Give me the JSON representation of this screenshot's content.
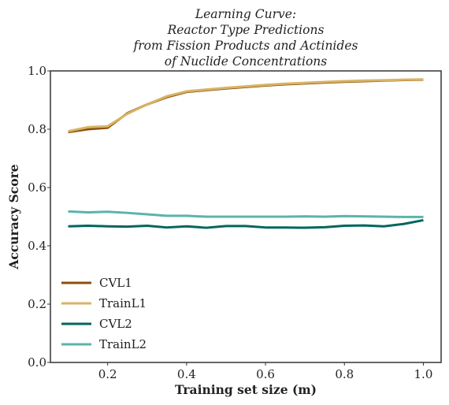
{
  "chart_data": {
    "type": "line",
    "title_lines": [
      "Learning Curve:",
      "Reactor Type Predictions",
      "from Fission Products and Actinides",
      "of Nuclide Concentrations"
    ],
    "xlabel": "Training set size (m)",
    "ylabel": "Accuracy Score",
    "xlim": [
      0.055,
      1.045
    ],
    "ylim": [
      0.0,
      1.0
    ],
    "xticks": [
      0.2,
      0.4,
      0.6,
      0.8,
      1.0
    ],
    "xtick_labels": [
      "0.2",
      "0.4",
      "0.6",
      "0.8",
      "1.0"
    ],
    "yticks": [
      0.0,
      0.2,
      0.4,
      0.6,
      0.8,
      1.0
    ],
    "ytick_labels": [
      "0.0",
      "0.2",
      "0.4",
      "0.6",
      "0.8",
      "1.0"
    ],
    "grid": false,
    "legend_placement": "lower-left",
    "x": [
      0.1,
      0.15,
      0.2,
      0.25,
      0.3,
      0.35,
      0.4,
      0.45,
      0.5,
      0.55,
      0.6,
      0.65,
      0.7,
      0.75,
      0.8,
      0.85,
      0.9,
      0.95,
      1.0
    ],
    "series": [
      {
        "name": "CVL1",
        "color": "#8c510a",
        "values": [
          0.79,
          0.8,
          0.805,
          0.855,
          0.885,
          0.91,
          0.928,
          0.934,
          0.94,
          0.945,
          0.95,
          0.954,
          0.957,
          0.96,
          0.963,
          0.965,
          0.967,
          0.969,
          0.97
        ]
      },
      {
        "name": "TrainL1",
        "color": "#d8b365",
        "values": [
          0.793,
          0.807,
          0.81,
          0.853,
          0.885,
          0.913,
          0.93,
          0.936,
          0.942,
          0.947,
          0.952,
          0.956,
          0.959,
          0.962,
          0.965,
          0.967,
          0.968,
          0.97,
          0.971
        ]
      },
      {
        "name": "CVL2",
        "color": "#01665e",
        "values": [
          0.467,
          0.469,
          0.467,
          0.466,
          0.469,
          0.463,
          0.467,
          0.462,
          0.468,
          0.468,
          0.463,
          0.463,
          0.462,
          0.464,
          0.469,
          0.47,
          0.467,
          0.475,
          0.488
        ]
      },
      {
        "name": "TrainL2",
        "color": "#5ab4ac",
        "values": [
          0.518,
          0.515,
          0.517,
          0.513,
          0.508,
          0.503,
          0.503,
          0.5,
          0.5,
          0.5,
          0.5,
          0.5,
          0.501,
          0.5,
          0.502,
          0.501,
          0.5,
          0.499,
          0.499
        ]
      }
    ]
  }
}
